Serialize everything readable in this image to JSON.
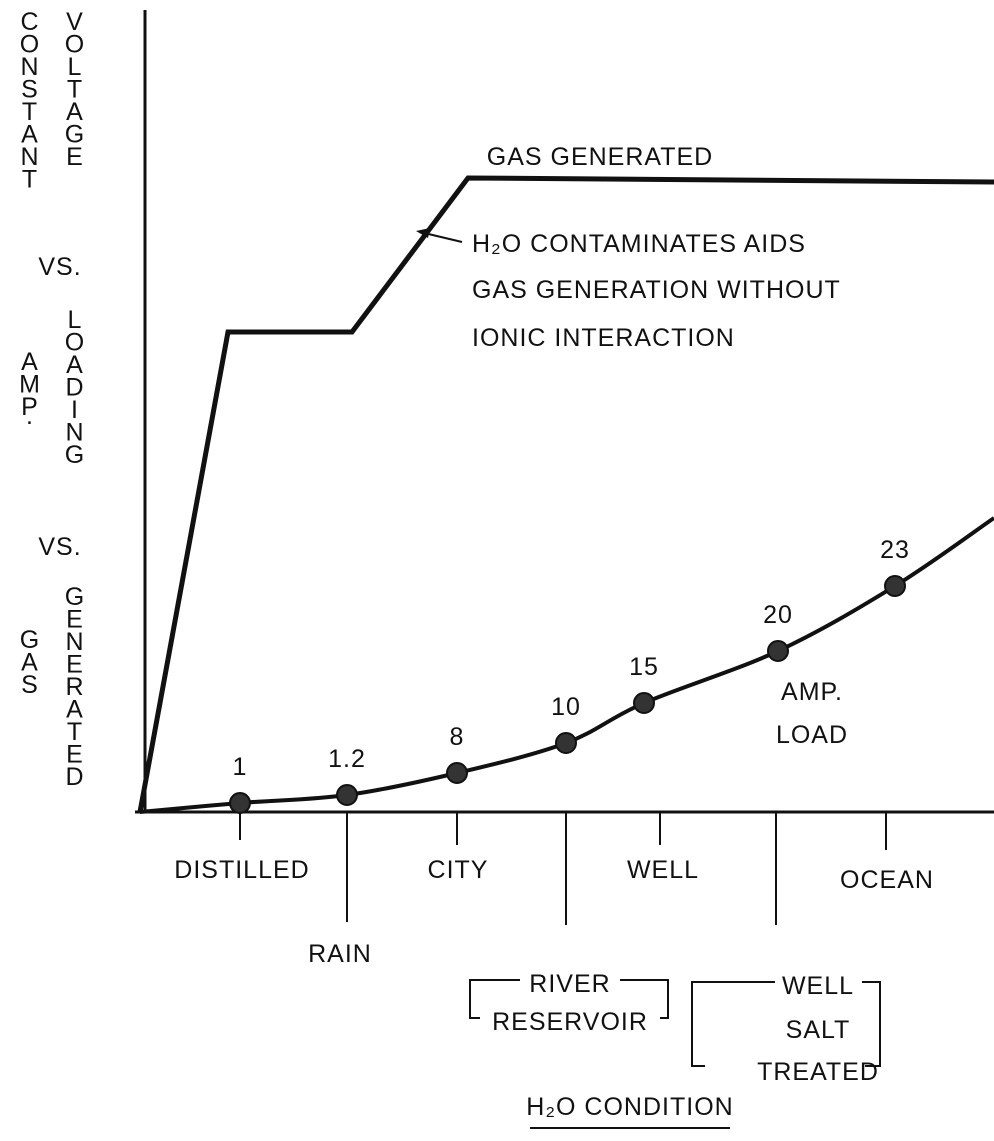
{
  "y_axis_label": [
    "CONSTANT",
    "VOLTAGE",
    "VS.",
    "AMP.",
    "LOADING",
    "VS.",
    "GAS",
    "GENERATED"
  ],
  "gas_curve_label": "GAS GENERATED",
  "annotation": [
    "H₂O CONTAMINATES AIDS",
    "GAS GENERATION WITHOUT",
    "IONIC INTERACTION"
  ],
  "amp_curve_label": [
    "AMP.",
    "LOAD"
  ],
  "point_labels": [
    "1",
    "1.2",
    "8",
    "10",
    "15",
    "20",
    "23"
  ],
  "upper_categories": [
    "DISTILLED",
    "CITY",
    "WELL",
    "OCEAN"
  ],
  "lower_categories": {
    "rain": "RAIN",
    "river_group": [
      "RIVER",
      "RESERVOIR"
    ],
    "well_group": [
      "WELL",
      "SALT",
      "TREATED"
    ]
  },
  "x_axis_title": "H₂O CONDITION"
}
